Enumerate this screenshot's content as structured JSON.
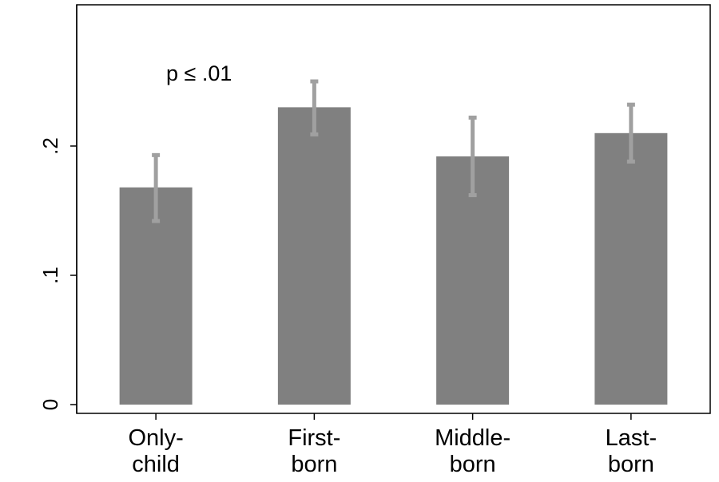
{
  "chart_data": {
    "type": "bar",
    "title": "",
    "xlabel": "",
    "ylabel": "",
    "categories": [
      [
        "Only-",
        "child"
      ],
      [
        "First-",
        "born"
      ],
      [
        "Middle-",
        "born"
      ],
      [
        "Last-",
        "born"
      ]
    ],
    "values": [
      0.168,
      0.23,
      0.192,
      0.21
    ],
    "error_bars": [
      {
        "low": 0.142,
        "high": 0.193
      },
      {
        "low": 0.209,
        "high": 0.25
      },
      {
        "low": 0.162,
        "high": 0.222
      },
      {
        "low": 0.188,
        "high": 0.232
      }
    ],
    "yticks": [
      0,
      0.1,
      0.2
    ],
    "ytick_labels": [
      "0",
      ".1",
      ".2"
    ],
    "ylim": [
      0,
      0.3
    ],
    "grid": false,
    "annotation": "p ≤ .01",
    "colors": {
      "bar": "#808080",
      "error_bar": "#a0a0a0"
    }
  }
}
